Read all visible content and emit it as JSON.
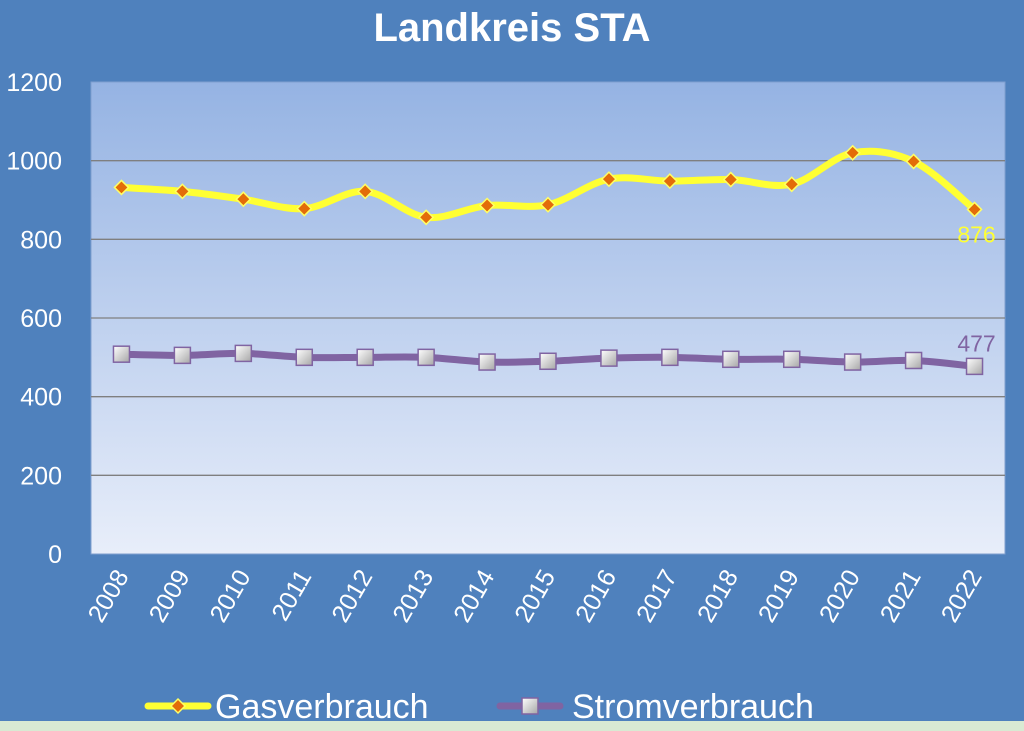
{
  "chart_data": {
    "type": "line",
    "title": "Landkreis STA",
    "categories": [
      "2008",
      "2009",
      "2010",
      "2011",
      "2012",
      "2013",
      "2014",
      "2015",
      "2016",
      "2017",
      "2018",
      "2019",
      "2020",
      "2021",
      "2022"
    ],
    "ylim": [
      0,
      1200
    ],
    "yticks": [
      0,
      200,
      400,
      600,
      800,
      1000,
      1200
    ],
    "grid": true,
    "legend_position": "bottom",
    "series": [
      {
        "name": "Gasverbrauch",
        "values": [
          932,
          922,
          902,
          878,
          922,
          856,
          886,
          888,
          953,
          948,
          952,
          940,
          1020,
          998,
          876
        ],
        "color": "#ffff33",
        "marker": "diamond",
        "end_label": "876"
      },
      {
        "name": "Stromverbrauch",
        "values": [
          508,
          505,
          510,
          500,
          500,
          500,
          488,
          490,
          498,
          500,
          495,
          495,
          488,
          492,
          477
        ],
        "color": "#8064a2",
        "marker": "square",
        "end_label": "477"
      }
    ]
  }
}
